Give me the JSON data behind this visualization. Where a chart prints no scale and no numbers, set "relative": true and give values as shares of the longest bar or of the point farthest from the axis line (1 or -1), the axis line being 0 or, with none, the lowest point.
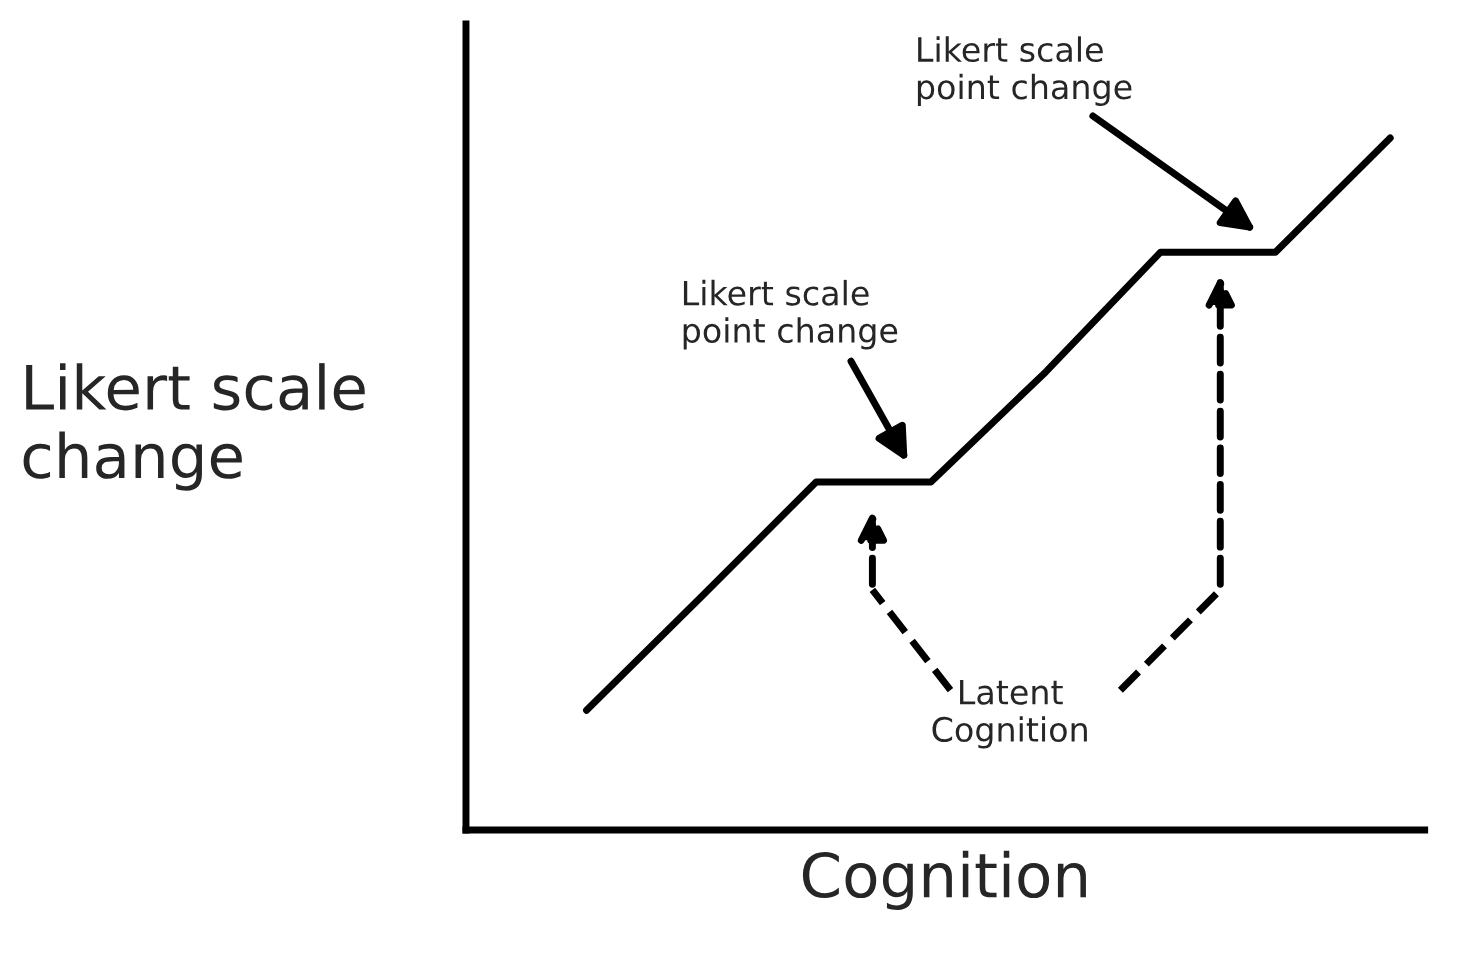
{
  "chart_data": {
    "type": "line",
    "relative": true,
    "xlabel": "Cognition",
    "ylabel": "Likert scale\nchange",
    "categories": [
      null,
      null,
      null,
      null,
      null,
      null,
      null,
      null
    ],
    "series": [
      {
        "color": "#000000",
        "values": [
          0.173,
          0.337,
          0.503,
          0.503,
          0.662,
          0.835,
          0.835,
          1.0
        ]
      }
    ],
    "annotations": [
      "Likert scale\npoint change",
      "Likert scale\npoint change",
      "Latent\nCognition"
    ]
  }
}
